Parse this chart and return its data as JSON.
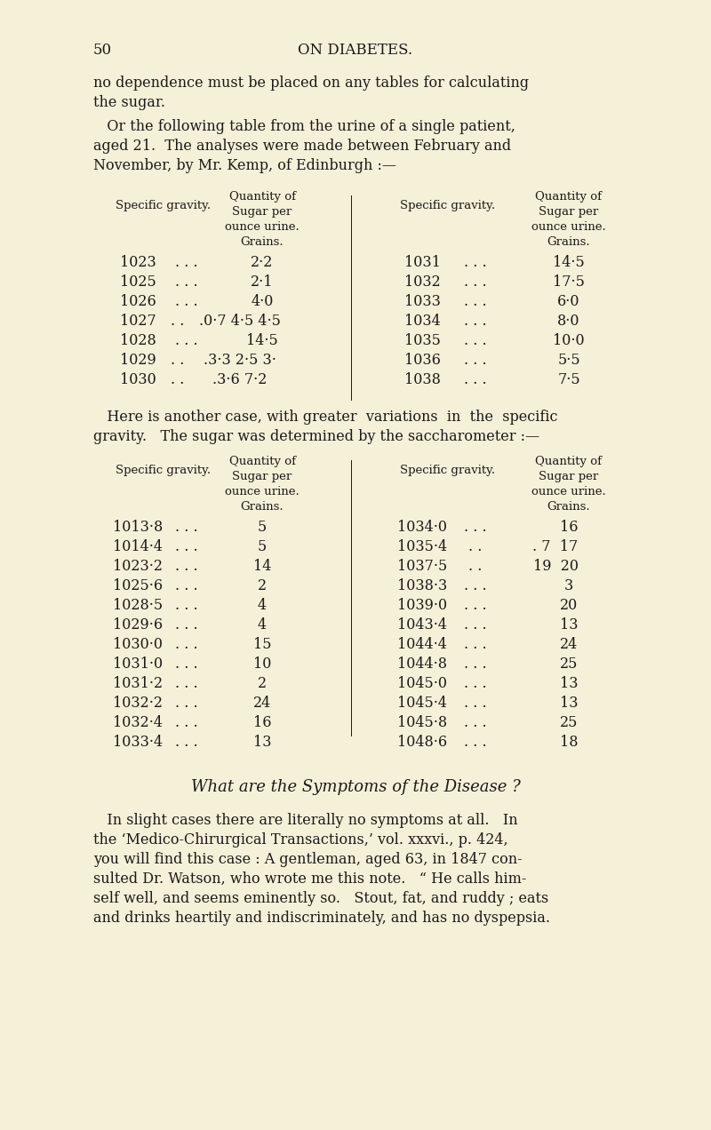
{
  "bg_color": "#f5f0d8",
  "text_color": "#1a1a1a",
  "page_num": "50",
  "page_header": "ON DIABETES.",
  "intro_text1": "no dependence must be placed on any tables for calculating",
  "intro_text2": "the sugar.",
  "intro_text3": "   Or the following table from the urine of a single patient,",
  "intro_text4": "aged 21.  The analyses were made between February and",
  "intro_text5": "November, by Mr. Kemp, of Edinburgh :—",
  "table1_col_header": [
    "Specific gravity.",
    "Quantity of\nSugar per\nounce urine.\nGrains.",
    "Specific gravity.",
    "Quantity of\nSugar per\nounce urine.\nGrains."
  ],
  "table1_left": [
    [
      "1023",
      ".",
      ".",
      ".",
      "2·2"
    ],
    [
      "1025",
      ".",
      ".",
      ".",
      "2·1"
    ],
    [
      "1026",
      ".",
      ".",
      ".",
      "4·0"
    ],
    [
      "1027",
      ".",
      ".",
      ".0·7 4·5 4·5"
    ],
    [
      "1028",
      ".",
      ".",
      ".",
      "14·5"
    ],
    [
      "1029",
      ".",
      ".",
      ".3·3 2·5 3·"
    ],
    [
      "1030",
      ".",
      ".",
      ".3·6 7·2"
    ]
  ],
  "table1_right": [
    [
      "1031",
      ".",
      ".",
      ".",
      "14·5"
    ],
    [
      "1032",
      ".",
      ".",
      ".",
      "17·5"
    ],
    [
      "1033",
      ".",
      ".",
      ".",
      "6·0"
    ],
    [
      "1034",
      ".",
      ".",
      ".",
      "8·0"
    ],
    [
      "1035",
      ".",
      ".",
      ".",
      "10·0"
    ],
    [
      "1036",
      ".",
      ".",
      ".",
      "5·5"
    ],
    [
      "1038",
      ".",
      ".",
      ".",
      "7·5"
    ]
  ],
  "mid_text1": "   Here is another case, with greater  variations  in  the  specific",
  "mid_text2": "gravity.   The sugar was determined by the saccharometer :—",
  "table2_left": [
    [
      "1013·8",
      ".",
      ".",
      ".",
      "5"
    ],
    [
      "1014·4",
      ".",
      ".",
      ".",
      "5"
    ],
    [
      "1023·2",
      ".",
      ".",
      ".",
      "14"
    ],
    [
      "1025·6",
      ".",
      ".",
      ".",
      "2"
    ],
    [
      "1028·5",
      ".",
      ".",
      ".",
      "4"
    ],
    [
      "1029·6",
      ".",
      ".",
      ".",
      "4"
    ],
    [
      "1030·0",
      ".",
      ".",
      ".",
      "15"
    ],
    [
      "1031·0",
      ".",
      ".",
      ".",
      "10"
    ],
    [
      "1031·2",
      ".",
      ".",
      ".",
      "2"
    ],
    [
      "1032·2",
      ".",
      ".",
      ".",
      "24"
    ],
    [
      "1032·4",
      ".",
      ".",
      ".",
      "16"
    ],
    [
      "1033·4",
      ".",
      ".",
      ".",
      "13"
    ]
  ],
  "table2_right": [
    [
      "1034·0",
      ".",
      ".",
      ".",
      "16"
    ],
    [
      "1035·4",
      ".",
      ".",
      ".7  17"
    ],
    [
      "1037·5",
      ".",
      ".",
      "19  20"
    ],
    [
      "1038·3",
      ".",
      ".",
      ".",
      "3"
    ],
    [
      "1039·0",
      ".",
      ".",
      ".",
      "20"
    ],
    [
      "1043·4",
      ".",
      ".",
      ".",
      "13"
    ],
    [
      "1044·4",
      ".",
      ".",
      ".",
      "24"
    ],
    [
      "1044·8",
      ".",
      ".",
      ".",
      "25"
    ],
    [
      "1045·0",
      ".",
      ".",
      ".",
      "13"
    ],
    [
      "1045·4",
      ".",
      ".",
      ".",
      "13"
    ],
    [
      "1045·8",
      ".",
      ".",
      ".",
      "25"
    ],
    [
      "1048·6",
      ".",
      ".",
      ".",
      "18"
    ]
  ],
  "section_heading": "What are the Symptoms of the Disease ?",
  "body_text": [
    "   In slight cases there are literally no symptoms at all.   In",
    "the ‘Medico-Chirurgical Transactions,’ vol. xxxvi., p. 424,",
    "you will find this case : A gentleman, aged 63, in 1847 con-",
    "sulted Dr. Watson, who wrote me this note.   “ He calls him-",
    "self well, and seems eminently so.   Stout, fat, and ruddy ; eats",
    "and drinks heartily and indiscriminately, and has no dyspepsia."
  ]
}
